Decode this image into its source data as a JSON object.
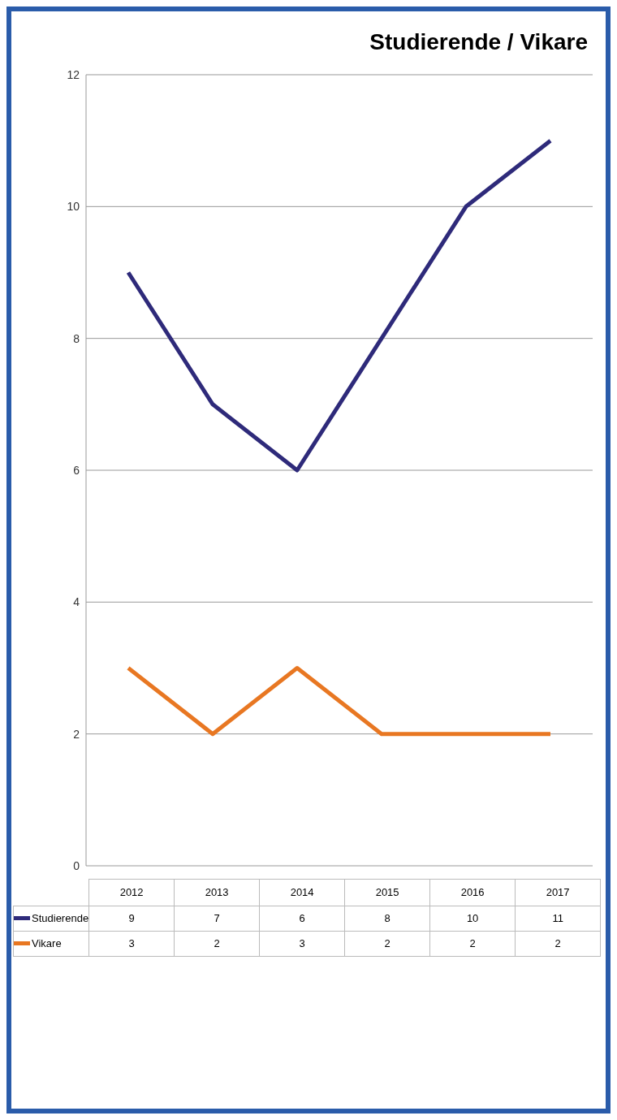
{
  "chart_data": {
    "type": "line",
    "title": "Studierende / Vikare",
    "categories": [
      "2012",
      "2013",
      "2014",
      "2015",
      "2016",
      "2017"
    ],
    "series": [
      {
        "name": "Studierende",
        "color": "#2e2a7a",
        "values": [
          9,
          7,
          6,
          8,
          10,
          11
        ]
      },
      {
        "name": "Vikare",
        "color": "#e87722",
        "values": [
          3,
          2,
          3,
          2,
          2,
          2
        ]
      }
    ],
    "ylim": [
      0,
      12
    ],
    "yticks": [
      0,
      2,
      4,
      6,
      8,
      10,
      12
    ],
    "grid": "y",
    "legend": "bottom left",
    "data_labels": true,
    "marker": "none",
    "line_style": "solid"
  }
}
